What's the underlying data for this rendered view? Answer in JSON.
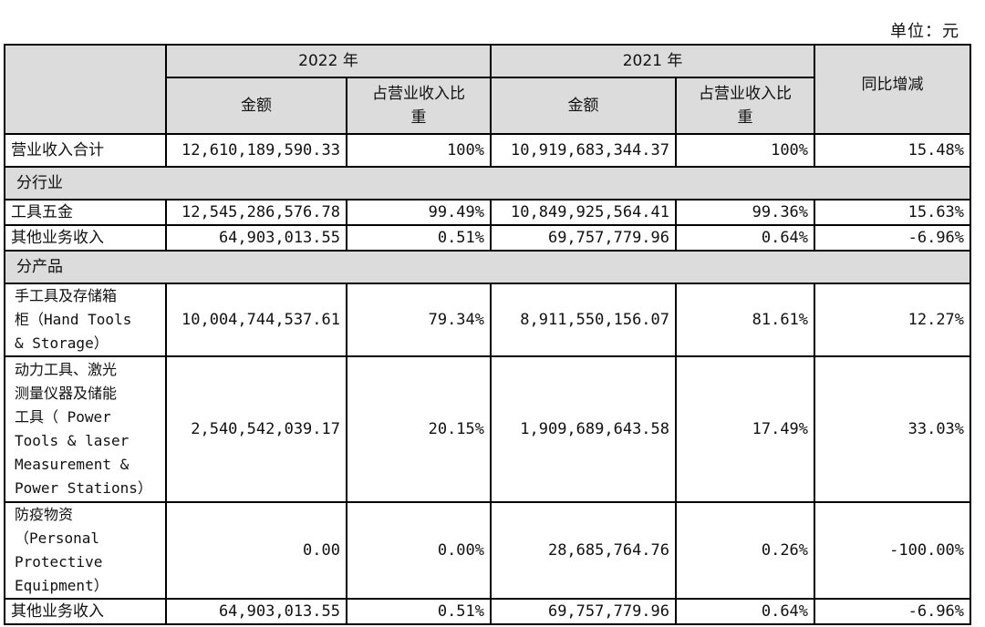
{
  "unit_label": "单位：元",
  "header": {
    "year_2022": "2022 年",
    "year_2021": "2021 年",
    "amount": "金额",
    "ratio": "占营业收入比\n重",
    "yoy": "同比增减"
  },
  "rows": {
    "total": {
      "label": "营业收入合计",
      "amt2022": "12,610,189,590.33",
      "pct2022": "100%",
      "amt2021": "10,919,683,344.37",
      "pct2021": "100%",
      "yoy": "15.48%"
    },
    "section_industry": "分行业",
    "tools_hardware": {
      "label": "工具五金",
      "amt2022": "12,545,286,576.78",
      "pct2022": "99.49%",
      "amt2021": "10,849,925,564.41",
      "pct2021": "99.36%",
      "yoy": "15.63%"
    },
    "other_industry": {
      "label": "其他业务收入",
      "amt2022": "64,903,013.55",
      "pct2022": "0.51%",
      "amt2021": "69,757,779.96",
      "pct2021": "0.64%",
      "yoy": "-6.96%"
    },
    "section_product": "分产品",
    "hand_tools": {
      "label": "手工具及存储箱\n柜（Hand Tools\n& Storage）",
      "amt2022": "10,004,744,537.61",
      "pct2022": "79.34%",
      "amt2021": "8,911,550,156.07",
      "pct2021": "81.61%",
      "yoy": "12.27%"
    },
    "power_tools": {
      "label": "动力工具、激光\n测量仪器及储能\n工具（ Power\nTools & laser\nMeasurement &\nPower Stations）",
      "amt2022": "2,540,542,039.17",
      "pct2022": "20.15%",
      "amt2021": "1,909,689,643.58",
      "pct2021": "17.49%",
      "yoy": "33.03%"
    },
    "ppe": {
      "label": "防疫物资\n（Personal\nProtective\nEquipment）",
      "amt2022": "0.00",
      "pct2022": "0.00%",
      "amt2021": "28,685,764.76",
      "pct2021": "0.26%",
      "yoy": "-100.00%"
    },
    "other_product": {
      "label": "其他业务收入",
      "amt2022": "64,903,013.55",
      "pct2022": "0.51%",
      "amt2021": "69,757,779.96",
      "pct2021": "0.64%",
      "yoy": "-6.96%"
    }
  }
}
